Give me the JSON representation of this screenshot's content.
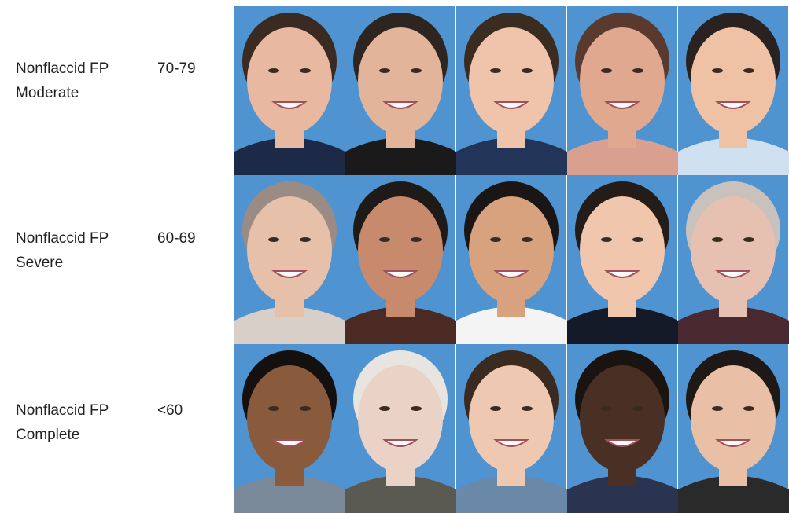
{
  "rows": [
    {
      "label": [
        "Nonflaccid FP",
        "Moderate"
      ],
      "score": "70-79"
    },
    {
      "label": [
        "Nonflaccid FP",
        "Severe"
      ],
      "score": "60-69"
    },
    {
      "label": [
        "Nonflaccid FP",
        "Complete"
      ],
      "score": "<60"
    }
  ]
}
